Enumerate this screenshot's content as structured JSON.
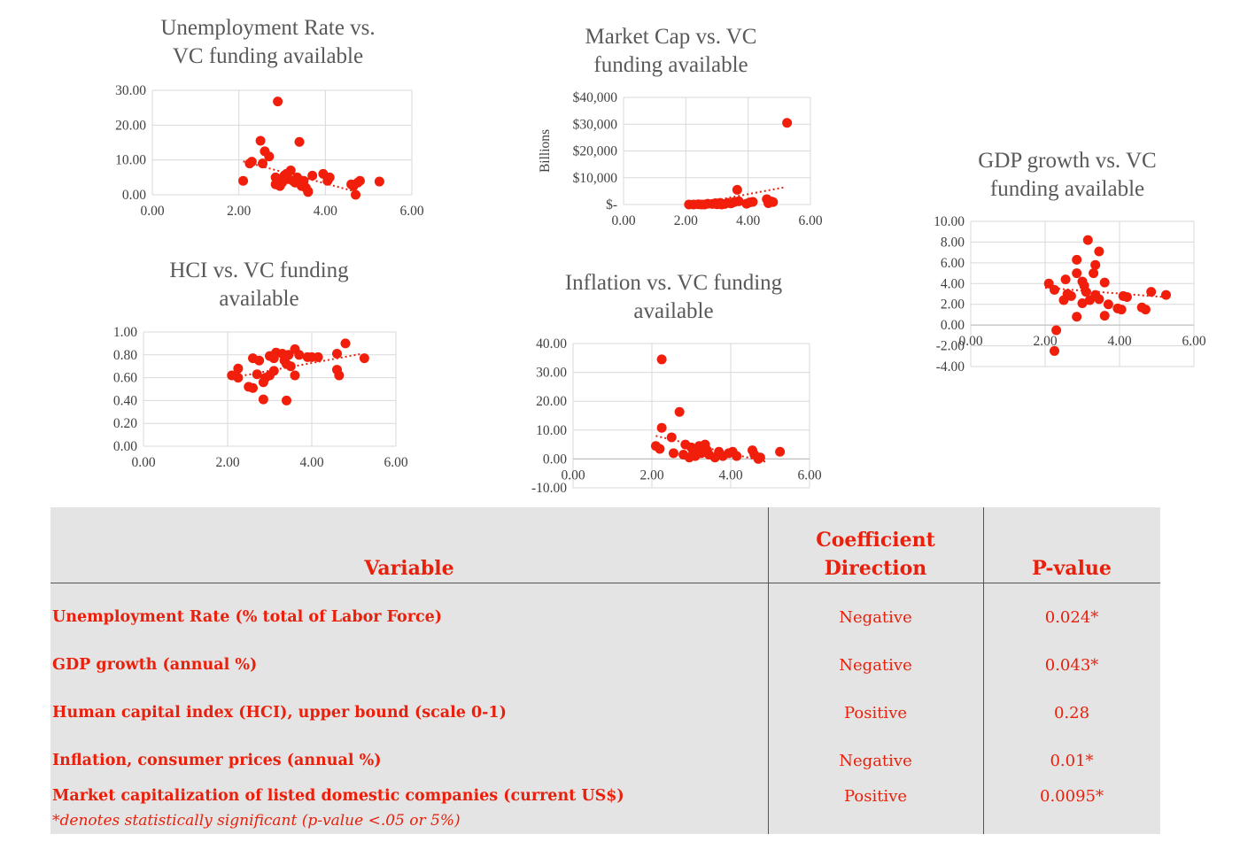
{
  "colors": {
    "marker": "#f01e0a",
    "trend": "#e8200c",
    "grid": "#d9d9d9",
    "axis_text": "#404040",
    "title": "#595959",
    "table_bg": "#e4e4e4",
    "table_text": "#e8200c"
  },
  "chart_data": [
    {
      "id": "unemployment",
      "type": "scatter",
      "title": "Unemployment Rate vs.\nVC funding available",
      "xlim": [
        0,
        6
      ],
      "ylim": [
        0,
        30
      ],
      "xticks": [
        "0.00",
        "2.00",
        "4.00",
        "6.00"
      ],
      "yticks": [
        "0.00",
        "10.00",
        "20.00",
        "30.00"
      ],
      "ylabel": "",
      "trend": [
        [
          2.1,
          9.6
        ],
        [
          4.7,
          0.9
        ]
      ],
      "points": [
        [
          2.9,
          26.8
        ],
        [
          2.5,
          15.5
        ],
        [
          3.4,
          15.2
        ],
        [
          2.6,
          12.5
        ],
        [
          2.7,
          11
        ],
        [
          2.3,
          9.5
        ],
        [
          2.25,
          9
        ],
        [
          2.55,
          9
        ],
        [
          2.1,
          4
        ],
        [
          2.85,
          5
        ],
        [
          2.95,
          2.5
        ],
        [
          2.85,
          3
        ],
        [
          3.0,
          3.5
        ],
        [
          3.05,
          5.5
        ],
        [
          3.1,
          6
        ],
        [
          3.15,
          4.5
        ],
        [
          3.2,
          7
        ],
        [
          3.25,
          4
        ],
        [
          3.3,
          3.5
        ],
        [
          3.35,
          5
        ],
        [
          3.45,
          2.5
        ],
        [
          3.5,
          4
        ],
        [
          3.55,
          2
        ],
        [
          3.6,
          1
        ],
        [
          3.7,
          5.5
        ],
        [
          3.95,
          6
        ],
        [
          4.05,
          4
        ],
        [
          4.1,
          5
        ],
        [
          4.6,
          3
        ],
        [
          4.65,
          2.5
        ],
        [
          4.7,
          0
        ],
        [
          4.75,
          3.5
        ],
        [
          4.8,
          4
        ],
        [
          5.25,
          3.8
        ],
        [
          3.0,
          4
        ],
        [
          3.6,
          0.8
        ]
      ]
    },
    {
      "id": "marketcap",
      "type": "scatter",
      "title": "Market Cap vs. VC\nfunding available",
      "xlim": [
        0,
        6
      ],
      "ylim": [
        0,
        40000
      ],
      "xticks": [
        "0.00",
        "2.00",
        "4.00",
        "6.00"
      ],
      "yticks": [
        "$-",
        "$10,000",
        "$20,000",
        "$30,000",
        "$40,000"
      ],
      "ylabel": "Billions",
      "trend": [
        [
          2.0,
          -500
        ],
        [
          5.2,
          6500
        ]
      ],
      "points": [
        [
          5.25,
          30500
        ],
        [
          3.65,
          5500
        ],
        [
          2.1,
          0
        ],
        [
          2.25,
          0
        ],
        [
          2.4,
          100
        ],
        [
          2.6,
          0
        ],
        [
          2.7,
          300
        ],
        [
          2.85,
          200
        ],
        [
          2.95,
          500
        ],
        [
          3.0,
          100
        ],
        [
          3.05,
          300
        ],
        [
          3.15,
          0
        ],
        [
          3.25,
          200
        ],
        [
          3.35,
          600
        ],
        [
          3.45,
          400
        ],
        [
          3.55,
          900
        ],
        [
          3.7,
          1200
        ],
        [
          3.95,
          300
        ],
        [
          4.05,
          800
        ],
        [
          4.15,
          1000
        ],
        [
          4.6,
          2000
        ],
        [
          4.65,
          500
        ],
        [
          4.75,
          1100
        ],
        [
          4.8,
          900
        ],
        [
          3.1,
          600
        ],
        [
          2.5,
          0
        ]
      ]
    },
    {
      "id": "gdp",
      "type": "scatter",
      "title": "GDP growth vs. VC\nfunding available",
      "xlim": [
        0,
        6
      ],
      "ylim": [
        -4,
        10
      ],
      "xticks": [
        "0.00",
        "2.00",
        "4.00",
        "6.00"
      ],
      "yticks": [
        "-4.00",
        "-2.00",
        "0.00",
        "2.00",
        "4.00",
        "6.00",
        "8.00",
        "10.00"
      ],
      "ylabel": "",
      "trend": [
        [
          2.0,
          3.6
        ],
        [
          5.2,
          2.7
        ]
      ],
      "points": [
        [
          3.15,
          8.2
        ],
        [
          3.45,
          7.1
        ],
        [
          2.85,
          6.3
        ],
        [
          3.35,
          5.8
        ],
        [
          2.85,
          5.0
        ],
        [
          3.3,
          5.0
        ],
        [
          2.55,
          4.4
        ],
        [
          3.0,
          4.2
        ],
        [
          3.6,
          4.1
        ],
        [
          2.1,
          4.0
        ],
        [
          3.05,
          3.8
        ],
        [
          2.25,
          3.4
        ],
        [
          3.1,
          3.2
        ],
        [
          2.6,
          3.0
        ],
        [
          2.7,
          2.8
        ],
        [
          3.35,
          2.9
        ],
        [
          3.45,
          2.5
        ],
        [
          2.5,
          2.4
        ],
        [
          3.2,
          2.4
        ],
        [
          3.0,
          2.1
        ],
        [
          4.1,
          2.8
        ],
        [
          4.2,
          2.7
        ],
        [
          4.85,
          3.2
        ],
        [
          5.25,
          2.9
        ],
        [
          3.7,
          2.0
        ],
        [
          3.95,
          1.6
        ],
        [
          4.05,
          1.5
        ],
        [
          4.6,
          1.7
        ],
        [
          4.7,
          1.5
        ],
        [
          3.6,
          0.9
        ],
        [
          2.85,
          0.8
        ],
        [
          2.3,
          -0.5
        ],
        [
          2.25,
          -2.5
        ]
      ]
    },
    {
      "id": "hci",
      "type": "scatter",
      "title": "HCI vs. VC funding\navailable",
      "xlim": [
        0,
        6
      ],
      "ylim": [
        0,
        1
      ],
      "xticks": [
        "0.00",
        "2.00",
        "4.00",
        "6.00"
      ],
      "yticks": [
        "0.00",
        "0.20",
        "0.40",
        "0.60",
        "0.80",
        "1.00"
      ],
      "ylabel": "",
      "trend": [
        [
          2.1,
          0.6
        ],
        [
          5.2,
          0.81
        ]
      ],
      "points": [
        [
          4.8,
          0.9
        ],
        [
          3.6,
          0.85
        ],
        [
          3.7,
          0.8
        ],
        [
          3.15,
          0.82
        ],
        [
          3.3,
          0.81
        ],
        [
          3.45,
          0.8
        ],
        [
          3.0,
          0.79
        ],
        [
          2.6,
          0.77
        ],
        [
          2.75,
          0.75
        ],
        [
          3.1,
          0.77
        ],
        [
          3.9,
          0.78
        ],
        [
          4.0,
          0.78
        ],
        [
          4.15,
          0.78
        ],
        [
          4.6,
          0.81
        ],
        [
          5.25,
          0.77
        ],
        [
          3.35,
          0.75
        ],
        [
          3.4,
          0.72
        ],
        [
          3.5,
          0.7
        ],
        [
          2.25,
          0.68
        ],
        [
          2.1,
          0.62
        ],
        [
          2.25,
          0.6
        ],
        [
          2.7,
          0.63
        ],
        [
          2.9,
          0.6
        ],
        [
          3.0,
          0.62
        ],
        [
          3.1,
          0.66
        ],
        [
          2.5,
          0.52
        ],
        [
          2.6,
          0.51
        ],
        [
          2.85,
          0.56
        ],
        [
          3.6,
          0.62
        ],
        [
          4.6,
          0.67
        ],
        [
          4.65,
          0.62
        ],
        [
          2.85,
          0.41
        ],
        [
          3.4,
          0.4
        ]
      ]
    },
    {
      "id": "inflation",
      "type": "scatter",
      "title": "Inflation vs. VC funding\navailable",
      "xlim": [
        0,
        6
      ],
      "ylim": [
        -10,
        40
      ],
      "xticks": [
        "0.00",
        "2.00",
        "4.00",
        "6.00"
      ],
      "yticks": [
        "-10.00",
        "0.00",
        "10.00",
        "20.00",
        "30.00",
        "40.00"
      ],
      "ylabel": "",
      "trend": [
        [
          2.1,
          8
        ],
        [
          4.9,
          -1
        ]
      ],
      "points": [
        [
          2.25,
          34.5
        ],
        [
          2.7,
          16.3
        ],
        [
          2.25,
          10.8
        ],
        [
          2.5,
          7.5
        ],
        [
          2.1,
          4.5
        ],
        [
          2.2,
          3.5
        ],
        [
          2.55,
          2
        ],
        [
          2.8,
          1.5
        ],
        [
          2.85,
          5
        ],
        [
          3.0,
          4
        ],
        [
          3.05,
          2.5
        ],
        [
          3.1,
          1
        ],
        [
          3.15,
          3.5
        ],
        [
          3.25,
          2
        ],
        [
          3.35,
          5
        ],
        [
          3.4,
          3
        ],
        [
          3.45,
          1.5
        ],
        [
          3.6,
          0.5
        ],
        [
          3.7,
          2.5
        ],
        [
          3.95,
          2
        ],
        [
          4.05,
          2.5
        ],
        [
          4.15,
          1
        ],
        [
          4.55,
          3
        ],
        [
          4.6,
          1.5
        ],
        [
          4.7,
          0
        ],
        [
          4.75,
          0.5
        ],
        [
          5.25,
          2.5
        ],
        [
          2.95,
          0.5
        ],
        [
          3.2,
          4.5
        ],
        [
          3.8,
          1
        ]
      ]
    }
  ],
  "table": {
    "headers": {
      "variable": "Variable",
      "direction_line1": "Coefficient",
      "direction_line2": "Direction",
      "pvalue": "P-value"
    },
    "rows": [
      {
        "variable": "Unemployment Rate (% total of Labor Force)",
        "direction": "Negative",
        "pvalue": "0.024*"
      },
      {
        "variable": "GDP growth (annual %)",
        "direction": "Negative",
        "pvalue": "0.043*"
      },
      {
        "variable": "Human capital index (HCI), upper bound (scale 0-1)",
        "direction": "Positive",
        "pvalue": "0.28"
      },
      {
        "variable": "Inflation, consumer prices (annual %)",
        "direction": "Negative",
        "pvalue": "0.01*"
      },
      {
        "variable": "Market capitalization of listed domestic companies (current US$)",
        "direction": "Positive",
        "pvalue": "0.0095*"
      }
    ],
    "note": "*denotes statistically significant (p-value <.05 or 5%)"
  }
}
